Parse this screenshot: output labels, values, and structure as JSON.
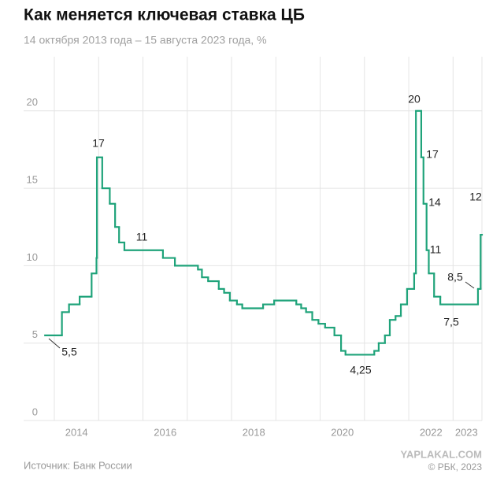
{
  "chart_data": {
    "type": "step",
    "title": "Как меняется ключевая ставка ЦБ",
    "subtitle": "14 октября 2013 года – 15 августа 2023 года, %",
    "source": "Источник: Банк России",
    "credit": "© РБК, 2023",
    "watermark": "YAPLAKAL.COM",
    "x": [
      2013.79,
      2014.17,
      2014.33,
      2014.57,
      2014.84,
      2014.95,
      2014.96,
      2015.08,
      2015.25,
      2015.37,
      2015.46,
      2015.58,
      2016.45,
      2016.72,
      2017.24,
      2017.33,
      2017.47,
      2017.71,
      2017.83,
      2017.96,
      2018.12,
      2018.24,
      2018.71,
      2018.96,
      2019.46,
      2019.57,
      2019.68,
      2019.82,
      2019.96,
      2020.11,
      2020.32,
      2020.47,
      2020.57,
      2021.22,
      2021.32,
      2021.46,
      2021.57,
      2021.7,
      2021.82,
      2021.96,
      2022.12,
      2022.16,
      2022.28,
      2022.33,
      2022.4,
      2022.45,
      2022.57,
      2022.71,
      2023.56,
      2023.62
    ],
    "values": [
      5.5,
      7.0,
      7.5,
      8.0,
      9.5,
      10.5,
      17,
      15,
      14,
      12.5,
      11.5,
      11,
      10.5,
      10,
      9.75,
      9.25,
      9.0,
      8.5,
      8.25,
      7.75,
      7.5,
      7.25,
      7.5,
      7.75,
      7.5,
      7.25,
      7.0,
      6.5,
      6.25,
      6.0,
      5.5,
      4.5,
      4.25,
      4.5,
      5.0,
      5.5,
      6.5,
      6.75,
      7.5,
      8.5,
      9.5,
      20,
      17,
      14,
      11,
      9.5,
      8.0,
      7.5,
      8.5,
      12
    ],
    "value_labels": [
      "5,5",
      null,
      null,
      null,
      null,
      null,
      "17",
      null,
      null,
      null,
      null,
      "11",
      null,
      null,
      null,
      null,
      null,
      null,
      null,
      null,
      null,
      null,
      null,
      null,
      null,
      null,
      null,
      null,
      null,
      null,
      null,
      null,
      "4,25",
      null,
      null,
      null,
      null,
      null,
      null,
      null,
      null,
      "20",
      "17",
      "14",
      "11",
      null,
      null,
      "7,5",
      "8,5",
      "12"
    ],
    "color": "#1fa37a",
    "xlim": [
      2013.75,
      2023.65
    ],
    "xticks": [
      {
        "value": 2014.5,
        "label": "2014"
      },
      {
        "value": 2016.5,
        "label": "2016"
      },
      {
        "value": 2018.5,
        "label": "2018"
      },
      {
        "value": 2020.5,
        "label": "2020"
      },
      {
        "value": 2022.5,
        "label": "2022"
      },
      {
        "value": 2023.3,
        "label": "2023"
      }
    ],
    "ylim": [
      0,
      23.5
    ],
    "yticks": [
      0,
      5,
      10,
      15,
      20
    ],
    "grid": true
  }
}
